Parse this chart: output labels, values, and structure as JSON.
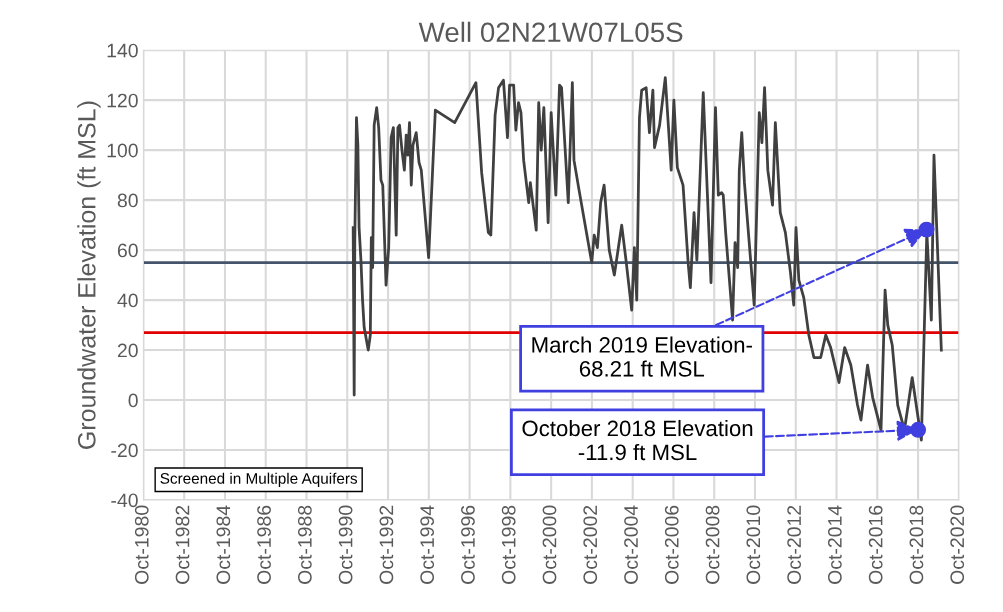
{
  "chart_data": {
    "type": "line",
    "title": "Well 02N21W07L05S",
    "ylabel": "Groundwater Elevation (ft MSL)",
    "xlim": [
      "1980-10-01",
      "2020-10-01"
    ],
    "xticks": [
      {
        "value": "1980-10-01",
        "label": "Oct-1980"
      },
      {
        "value": "1982-10-01",
        "label": "Oct-1982"
      },
      {
        "value": "1984-10-01",
        "label": "Oct-1984"
      },
      {
        "value": "1986-10-01",
        "label": "Oct-1986"
      },
      {
        "value": "1988-10-01",
        "label": "Oct-1988"
      },
      {
        "value": "1990-10-01",
        "label": "Oct-1990"
      },
      {
        "value": "1992-10-01",
        "label": "Oct-1992"
      },
      {
        "value": "1994-10-01",
        "label": "Oct-1994"
      },
      {
        "value": "1996-10-01",
        "label": "Oct-1996"
      },
      {
        "value": "1998-10-01",
        "label": "Oct-1998"
      },
      {
        "value": "2000-10-01",
        "label": "Oct-2000"
      },
      {
        "value": "2002-10-01",
        "label": "Oct-2002"
      },
      {
        "value": "2004-10-01",
        "label": "Oct-2004"
      },
      {
        "value": "2006-10-01",
        "label": "Oct-2006"
      },
      {
        "value": "2008-10-01",
        "label": "Oct-2008"
      },
      {
        "value": "2010-10-01",
        "label": "Oct-2010"
      },
      {
        "value": "2012-10-01",
        "label": "Oct-2012"
      },
      {
        "value": "2014-10-01",
        "label": "Oct-2014"
      },
      {
        "value": "2016-10-01",
        "label": "Oct-2016"
      },
      {
        "value": "2018-10-01",
        "label": "Oct-2018"
      },
      {
        "value": "2020-10-01",
        "label": "Oct-2020"
      }
    ],
    "ylim": [
      -40,
      140
    ],
    "yticks": [
      -40,
      -20,
      0,
      20,
      40,
      60,
      80,
      100,
      120,
      140
    ],
    "grid": true,
    "series": [
      {
        "color": "#404040",
        "x": [
          "1991-01-15",
          "1991-02-02",
          "1991-02-13",
          "1991-03-15",
          "1991-04-09",
          "1991-05-01",
          "1991-06-03",
          "1991-07-02",
          "1991-07-31",
          "1991-10-12",
          "1991-11-18",
          "1991-12-06",
          "1991-12-30",
          "1992-01-26",
          "1992-03-11",
          "1992-04-16",
          "1992-05-27",
          "1992-06-28",
          "1992-08-26",
          "1992-10-12",
          "1992-11-25",
          "1993-01-04",
          "1993-02-24",
          "1993-03-26",
          "1993-04-24",
          "1993-06-07",
          "1993-07-20",
          "1993-08-22",
          "1993-09-20",
          "1993-10-20",
          "1993-11-21",
          "1993-12-21",
          "1994-02-17",
          "1994-04-09",
          "1994-05-19",
          "1994-09-28",
          "1995-01-26",
          "1996-01-08",
          "1997-01-22",
          "1997-05-05",
          "1997-09-02",
          "1997-10-16",
          "1998-01-01",
          "1998-03-04",
          "1998-05-30",
          "1998-08-11",
          "1998-09-17",
          "1998-11-29",
          "1999-01-08",
          "1999-02-24",
          "1999-04-09",
          "1999-05-27",
          "1999-08-26",
          "1999-09-24",
          "2000-01-08",
          "2000-02-21",
          "2000-04-06",
          "2000-05-23",
          "2000-08-08",
          "2000-10-01",
          "2000-12-24",
          "2001-02-28",
          "2001-04-05",
          "2001-08-04",
          "2001-10-16",
          "2001-11-14",
          "2002-02-13",
          "2002-09-28",
          "2002-11-11",
          "2003-01-08",
          "2003-03-07",
          "2003-05-08",
          "2003-08-08",
          "2003-11-07",
          "2004-03-18",
          "2004-06-03",
          "2004-09-13",
          "2004-10-31",
          "2004-12-13",
          "2005-01-30",
          "2005-03-11",
          "2005-05-30",
          "2005-07-28",
          "2005-09-28",
          "2005-10-27",
          "2006-01-26",
          "2006-05-08",
          "2006-08-22",
          "2006-10-09",
          "2006-12-10",
          "2007-03-22",
          "2007-06-21",
          "2007-07-31",
          "2007-10-05",
          "2007-11-25",
          "2008-03-18",
          "2008-08-04",
          "2008-10-23",
          "2008-12-13",
          "2009-02-10",
          "2009-03-11",
          "2009-04-24",
          "2009-08-26",
          "2009-10-09",
          "2009-11-25",
          "2009-12-24",
          "2010-02-06",
          "2010-03-26",
          "2010-09-17",
          "2010-10-16",
          "2010-12-17",
          "2011-02-02",
          "2011-03-22",
          "2011-05-19",
          "2011-08-11",
          "2011-10-01",
          "2011-12-28",
          "2012-03-29",
          "2012-06-28",
          "2012-08-26",
          "2012-10-05",
          "2012-11-25",
          "2013-02-21",
          "2013-05-23",
          "2013-08-22",
          "2013-12-21",
          "2014-03-22",
          "2014-06-18",
          "2014-11-14",
          "2015-02-24",
          "2015-06-14",
          "2015-10-12",
          "2015-12-13",
          "2016-04-09",
          "2016-07-10",
          "2016-12-06",
          "2017-02-17",
          "2017-04-06",
          "2017-06-25",
          "2017-10-01",
          "2018-01-30",
          "2018-06-18",
          "2018-11-29",
          "2019-03-07",
          "2019-05-27",
          "2019-07-13",
          "2019-11-22"
        ],
        "values": [
          69,
          2,
          64,
          113,
          102,
          69,
          56,
          40,
          29,
          20,
          26,
          65,
          53,
          110,
          117,
          109,
          88,
          86,
          46,
          61,
          105,
          109,
          66,
          109,
          110,
          100,
          92,
          106,
          98,
          111,
          86,
          102,
          107,
          95,
          92,
          57,
          116,
          111,
          127,
          91,
          67,
          66,
          114,
          125,
          128,
          105,
          126,
          126,
          108,
          119,
          115,
          96,
          79,
          87,
          68,
          119,
          100,
          117,
          71,
          115,
          82,
          126,
          125,
          79,
          127,
          96,
          84,
          55,
          66,
          61,
          79,
          86,
          60,
          50,
          70,
          56,
          36,
          61,
          40,
          113,
          124,
          125,
          107,
          124,
          101,
          110,
          129,
          92,
          120,
          93,
          86,
          55,
          45,
          75,
          56,
          123,
          47,
          117,
          82,
          83,
          82,
          67,
          32,
          63,
          53,
          92,
          107,
          87,
          38,
          62,
          115,
          103,
          125,
          92,
          78,
          111,
          75,
          67,
          51,
          38,
          69,
          48,
          41,
          26,
          17,
          17,
          26,
          21,
          7,
          21,
          14,
          -2,
          -8,
          14,
          1,
          -12,
          44,
          30,
          22,
          -2,
          -12,
          9,
          -16,
          67,
          32,
          98,
          20
        ]
      },
      {
        "type": "scatter",
        "color": "#4040e0",
        "marker": "circle",
        "x": [
          "2018-10-01",
          "2019-03-01"
        ],
        "values": [
          -11.9,
          68.2
        ]
      }
    ],
    "ref_lines": [
      {
        "axis": "y",
        "value": 55,
        "color": "#44546a"
      },
      {
        "axis": "y",
        "value": 27,
        "color": "#e00000"
      }
    ],
    "annotations": [
      {
        "text": "March 2019 Elevation-\n68.21 ft MSL",
        "x": "2019-03-01",
        "y": 68.2
      },
      {
        "text": "October 2018 Elevation\n-11.9 ft MSL",
        "x": "2018-10-01",
        "y": -11.9
      },
      "Screened in Multiple Aquifers"
    ]
  }
}
